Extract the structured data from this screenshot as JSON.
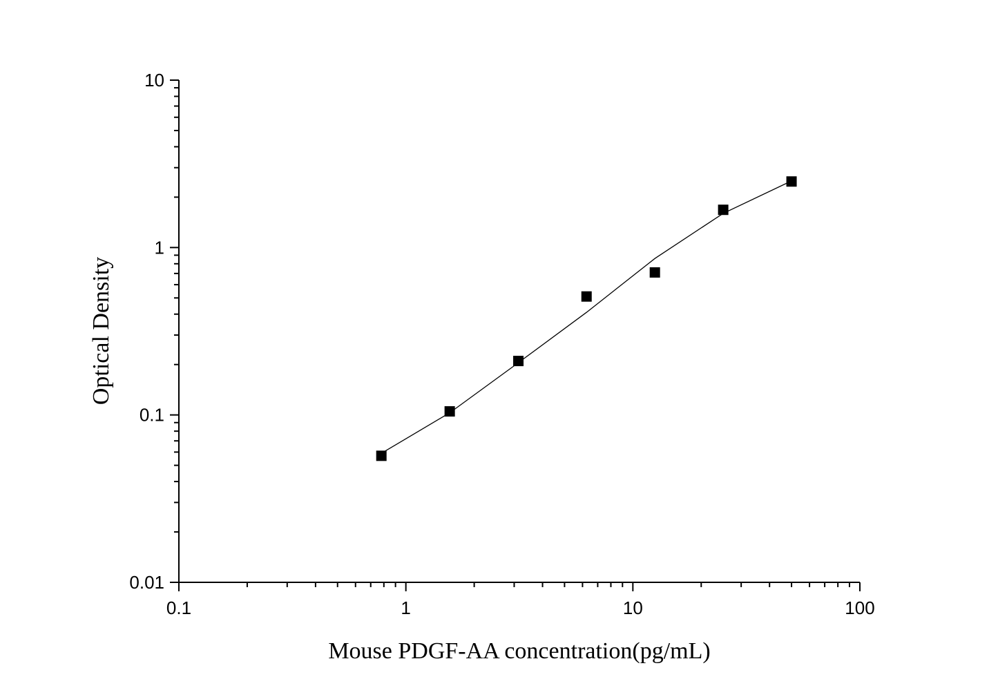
{
  "chart_data": {
    "type": "scatter",
    "xlabel": "Mouse PDGF-AA concentration(pg/mL)",
    "ylabel": "Optical Density",
    "x_scale": "log",
    "y_scale": "log",
    "xlim": [
      0.1,
      100
    ],
    "ylim": [
      0.01,
      10
    ],
    "x_ticks": [
      "0.1",
      "1",
      "10",
      "100"
    ],
    "y_ticks": [
      "0.01",
      "0.1",
      "1",
      "10"
    ],
    "grid": false,
    "legend": "none",
    "series": [
      {
        "marker": "square",
        "color": "#000000",
        "x": [
          0.78,
          1.56,
          3.13,
          6.25,
          12.5,
          25,
          50
        ],
        "y": [
          0.057,
          0.105,
          0.21,
          0.51,
          0.71,
          1.68,
          2.48
        ]
      }
    ],
    "fit_curve": {
      "color": "#000000",
      "x": [
        0.78,
        1.56,
        3.13,
        6.25,
        12.5,
        25,
        50
      ],
      "y": [
        0.059,
        0.103,
        0.205,
        0.41,
        0.86,
        1.6,
        2.5
      ]
    }
  }
}
